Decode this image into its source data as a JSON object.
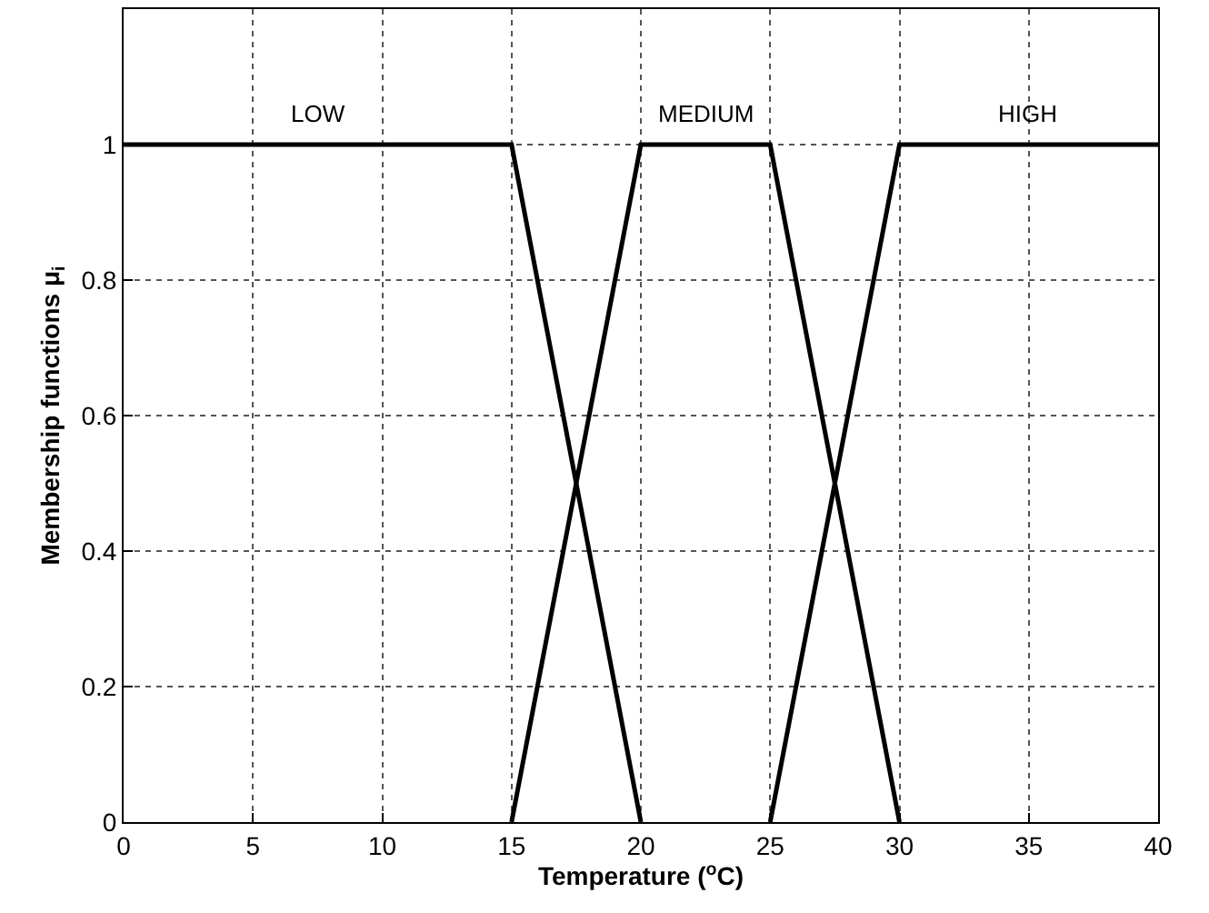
{
  "chart_data": {
    "type": "line",
    "xlabel": "Temperature ($^{o}$C)",
    "ylabel": "Membership functions μ$_{i}$",
    "series": [
      {
        "name": "LOW",
        "color": "#000000",
        "x": [
          0,
          15,
          20
        ],
        "values": [
          1,
          1,
          0
        ]
      },
      {
        "name": "MEDIUM",
        "color": "#000000",
        "x": [
          15,
          20,
          25,
          30
        ],
        "values": [
          0,
          1,
          1,
          0
        ]
      },
      {
        "name": "HIGH",
        "color": "#000000",
        "x": [
          25,
          30,
          40
        ],
        "values": [
          0,
          1,
          1
        ]
      }
    ],
    "xlim": [
      0,
      40
    ],
    "xticks": [
      0,
      5,
      10,
      15,
      20,
      25,
      30,
      35,
      40
    ],
    "ylim": [
      0,
      1.2
    ],
    "yticks": [
      0,
      0.2,
      0.4,
      0.6,
      0.8,
      1
    ],
    "grid": true,
    "legend": false,
    "marker": "none",
    "line_style": "solid"
  }
}
